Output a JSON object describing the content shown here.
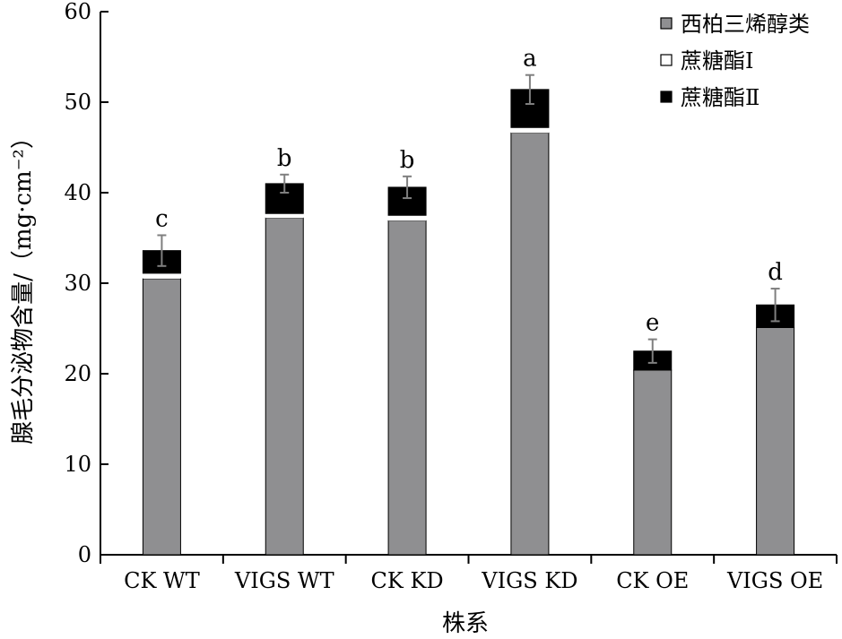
{
  "chart_data": {
    "type": "bar",
    "stacked": true,
    "xlabel": "株系",
    "ylabel": "腺毛分泌物含量/（mg·cm⁻²）",
    "ylim": [
      0,
      60
    ],
    "yticks": [
      0,
      10,
      20,
      30,
      40,
      50,
      60
    ],
    "categories": [
      "CK WT",
      "VIGS WT",
      "CK KD",
      "VIGS KD",
      "CK OE",
      "VIGS OE"
    ],
    "series": [
      {
        "name": "西柏三烯醇类",
        "color": "#8f8f91",
        "values": [
          30.5,
          37.2,
          36.9,
          46.6,
          20.4,
          25.1
        ]
      },
      {
        "name": "蔗糖酯Ⅰ",
        "color": "#ffffff",
        "values": [
          0.6,
          0.5,
          0.6,
          0.6,
          0.0,
          0.0
        ]
      },
      {
        "name": "蔗糖酯Ⅱ",
        "color": "#000000",
        "values": [
          2.5,
          3.3,
          3.1,
          4.2,
          2.1,
          2.5
        ]
      }
    ],
    "totals": [
      33.6,
      41.0,
      40.6,
      51.4,
      22.5,
      27.6
    ],
    "error": [
      1.7,
      1.0,
      1.2,
      1.6,
      1.3,
      1.8
    ],
    "significance": [
      "c",
      "b",
      "b",
      "a",
      "e",
      "d"
    ],
    "legend_position": "top-right",
    "grid": false
  }
}
